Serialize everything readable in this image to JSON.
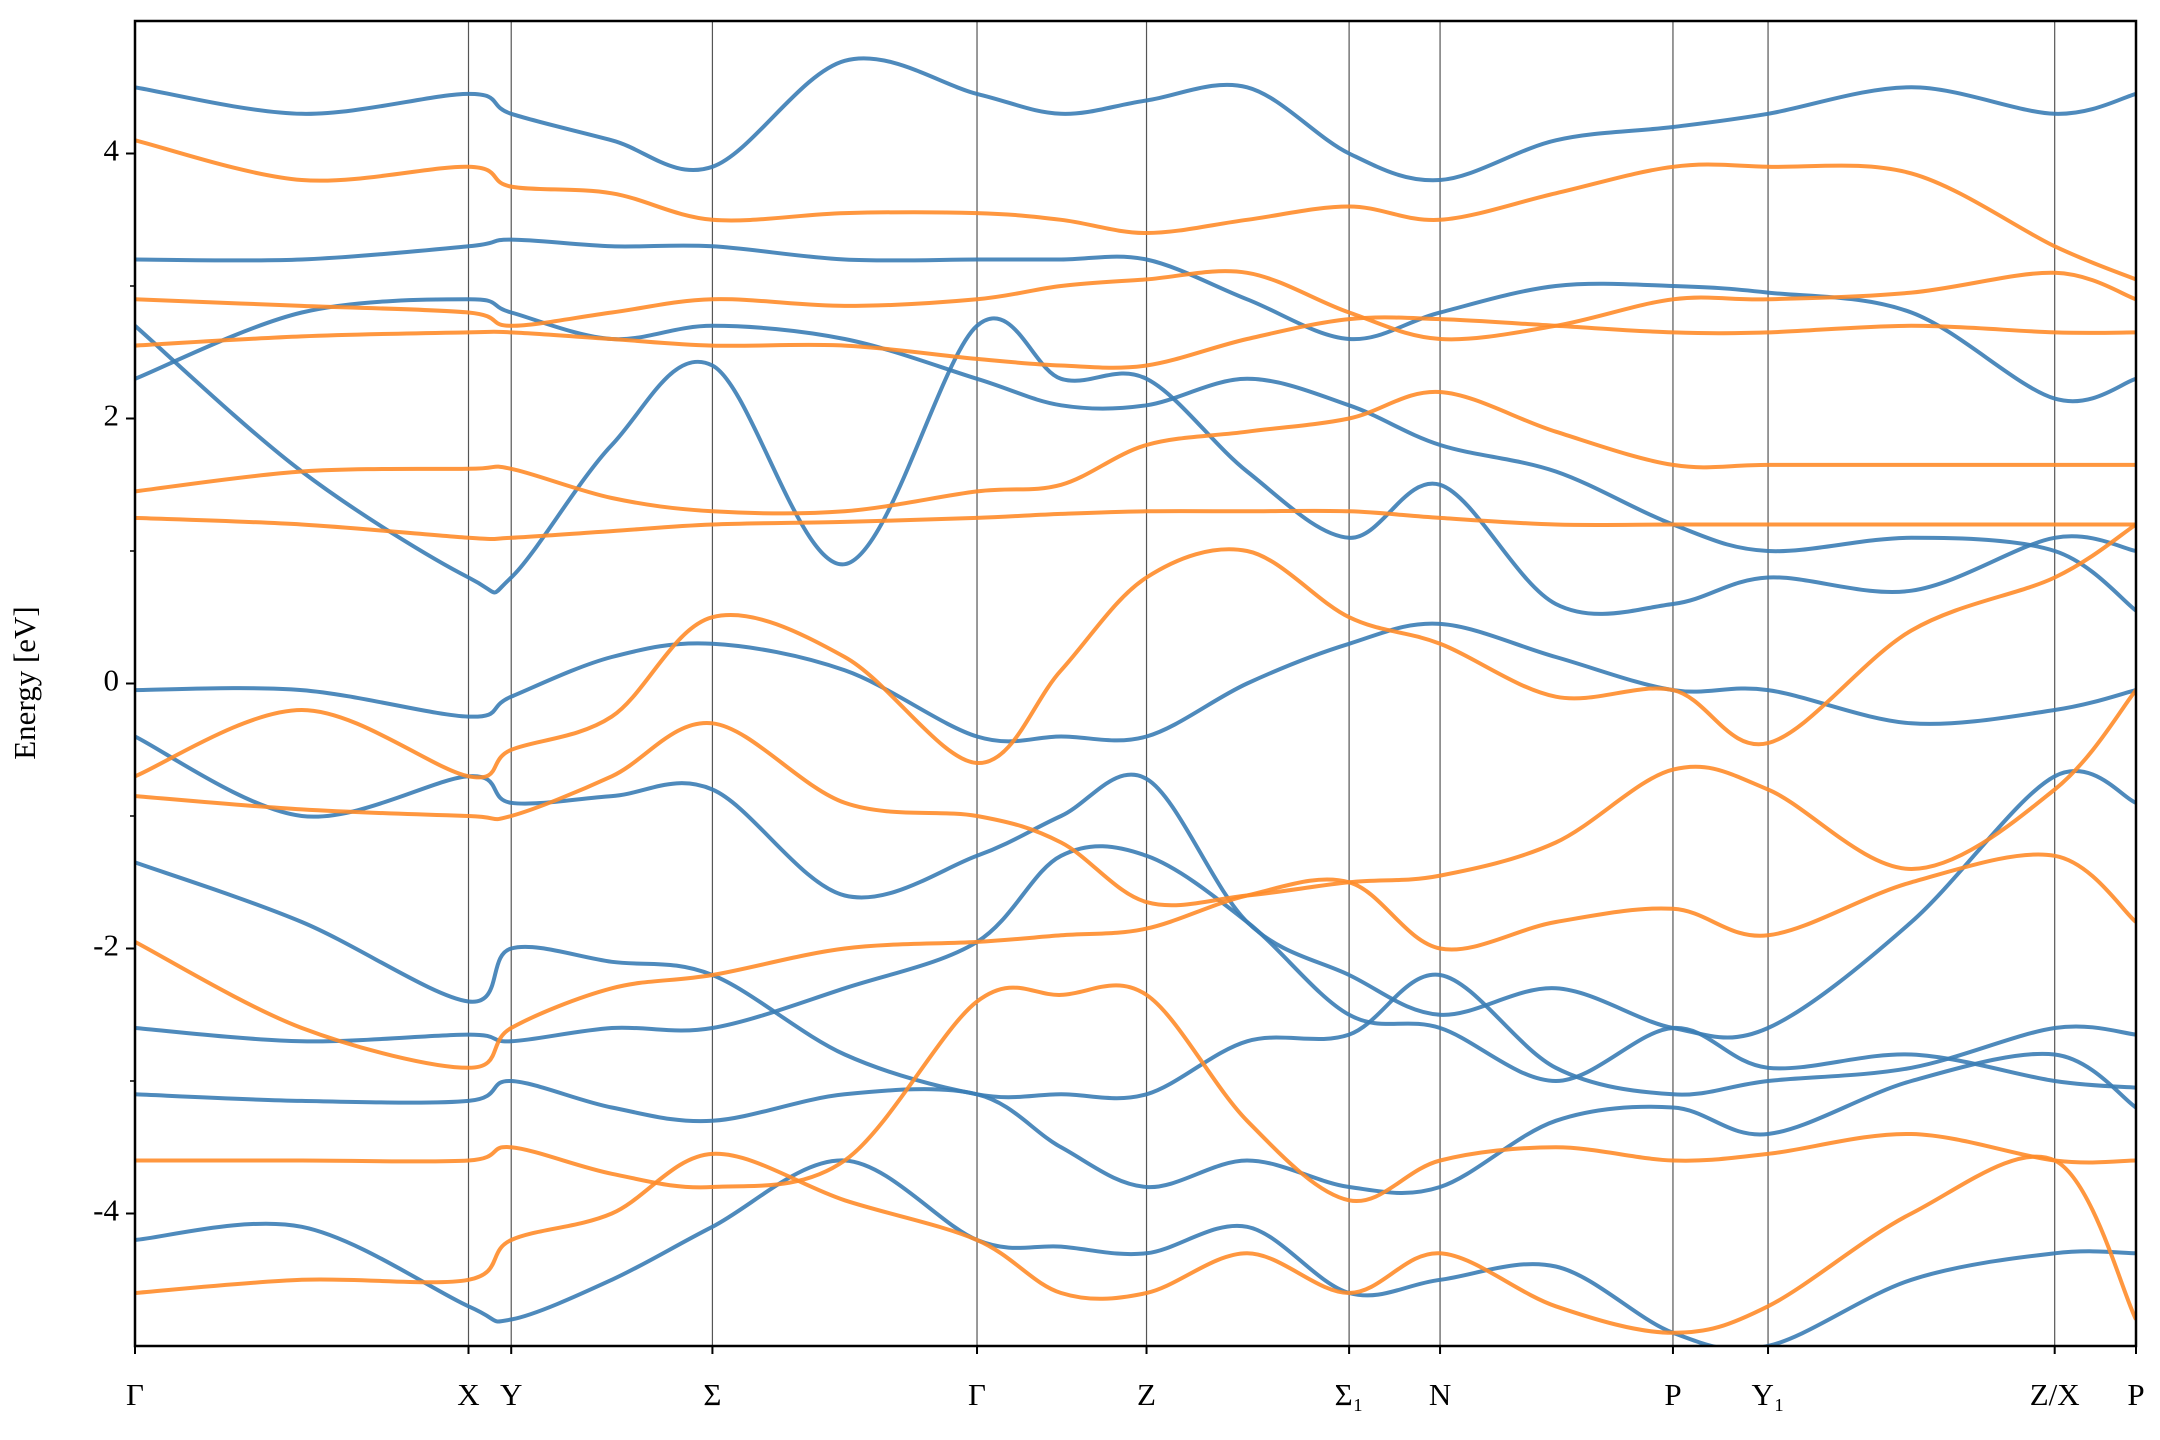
{
  "chart_data": {
    "type": "line",
    "ylabel": "Energy [eV]",
    "x": [
      0,
      0.121,
      0.242,
      0.273,
      0.346,
      0.419,
      0.515,
      0.611,
      0.672,
      0.734,
      0.807,
      0.881,
      0.947,
      1.031,
      1.116,
      1.185,
      1.289,
      1.393,
      1.452
    ],
    "xlim": [
      0,
      1.452
    ],
    "xticks": [
      {
        "value": 0,
        "label": "Γ"
      },
      {
        "value": 0.242,
        "label": "X"
      },
      {
        "value": 0.273,
        "label": "Y"
      },
      {
        "value": 0.419,
        "label": "Σ"
      },
      {
        "value": 0.611,
        "label": "Γ"
      },
      {
        "value": 0.734,
        "label": "Z"
      },
      {
        "value": 0.881,
        "label": "Σ₁"
      },
      {
        "value": 0.947,
        "label": "N"
      },
      {
        "value": 1.116,
        "label": "P"
      },
      {
        "value": 1.185,
        "label": "Y₁"
      },
      {
        "value": 1.393,
        "label": "Z/X"
      },
      {
        "value": 1.452,
        "label": "P"
      }
    ],
    "ylim": [
      -5,
      5
    ],
    "yticks": [
      -4,
      -2,
      0,
      2,
      4
    ],
    "yminorticks": [
      -3,
      -1,
      1,
      3
    ],
    "xgrid": true,
    "series": [
      {
        "color": "#3b7db5",
        "values": [
          -0.05,
          -0.05,
          -0.25,
          -0.1,
          0.2,
          0.3,
          0.1,
          -0.4,
          -0.4,
          -0.4,
          0.0,
          0.3,
          0.45,
          0.2,
          -0.05,
          -0.05,
          -0.3,
          -0.2,
          -0.05
        ]
      },
      {
        "color": "#3b7db5",
        "values": [
          -0.4,
          -1.0,
          -0.7,
          -0.9,
          -0.85,
          -0.8,
          -1.6,
          -1.3,
          -1.0,
          -0.72,
          -1.8,
          -2.2,
          -2.5,
          -2.3,
          -2.6,
          -2.6,
          -1.8,
          -0.7,
          -0.9
        ]
      },
      {
        "color": "#3b7db5",
        "values": [
          2.7,
          1.6,
          0.8,
          0.8,
          1.8,
          2.4,
          0.9,
          2.7,
          2.3,
          2.3,
          1.6,
          1.1,
          1.5,
          0.6,
          0.6,
          0.8,
          0.7,
          1.1,
          1.0
        ]
      },
      {
        "color": "#3b7db5",
        "values": [
          3.2,
          3.2,
          3.3,
          3.35,
          3.3,
          3.3,
          3.2,
          3.2,
          3.2,
          3.2,
          2.9,
          2.6,
          2.8,
          3.0,
          3.0,
          2.95,
          2.8,
          2.15,
          2.3
        ]
      },
      {
        "color": "#3b7db5",
        "values": [
          4.5,
          4.3,
          4.45,
          4.3,
          4.1,
          3.9,
          4.7,
          4.45,
          4.3,
          4.4,
          4.5,
          4.0,
          3.8,
          4.1,
          4.2,
          4.3,
          4.5,
          4.3,
          4.45
        ]
      },
      {
        "color": "#3b7db5",
        "values": [
          -1.35,
          -1.8,
          -2.4,
          -2.0,
          -2.1,
          -2.2,
          -2.8,
          -3.1,
          -3.1,
          -3.1,
          -2.7,
          -2.65,
          -2.2,
          -2.9,
          -3.1,
          -3.0,
          -2.9,
          -2.6,
          -2.65
        ]
      },
      {
        "color": "#3b7db5",
        "values": [
          -3.1,
          -3.15,
          -3.15,
          -3.0,
          -3.2,
          -3.3,
          -3.1,
          -3.1,
          -3.5,
          -3.8,
          -3.6,
          -3.8,
          -3.8,
          -3.3,
          -3.2,
          -3.4,
          -3.0,
          -2.8,
          -3.2
        ]
      },
      {
        "color": "#3b7db5",
        "values": [
          -4.2,
          -4.1,
          -4.7,
          -4.8,
          -4.5,
          -4.1,
          -3.6,
          -4.2,
          -4.25,
          -4.3,
          -4.1,
          -4.6,
          -4.5,
          -4.4,
          -4.9,
          -5.0,
          -4.5,
          -4.3,
          -4.3
        ]
      },
      {
        "color": "#3b7db5",
        "values": [
          2.3,
          2.8,
          2.9,
          2.8,
          2.6,
          2.7,
          2.6,
          2.3,
          2.1,
          2.1,
          2.3,
          2.1,
          1.8,
          1.6,
          1.2,
          1.0,
          1.1,
          1.0,
          0.55
        ]
      },
      {
        "color": "#3b7db5",
        "values": [
          -2.6,
          -2.7,
          -2.65,
          -2.7,
          -2.6,
          -2.6,
          -2.3,
          -1.95,
          -1.3,
          -1.3,
          -1.8,
          -2.5,
          -2.6,
          -3.0,
          -2.6,
          -2.9,
          -2.8,
          -3.0,
          -3.05
        ]
      },
      {
        "color": "#ff8c2a",
        "values": [
          1.45,
          1.6,
          1.62,
          1.62,
          1.4,
          1.3,
          1.3,
          1.45,
          1.5,
          1.8,
          1.9,
          2.0,
          2.2,
          1.9,
          1.65,
          1.65,
          1.65,
          1.65,
          1.65
        ]
      },
      {
        "color": "#ff8c2a",
        "values": [
          1.25,
          1.2,
          1.1,
          1.1,
          1.15,
          1.2,
          1.22,
          1.25,
          1.28,
          1.3,
          1.3,
          1.3,
          1.25,
          1.2,
          1.2,
          1.2,
          1.2,
          1.2,
          1.2
        ]
      },
      {
        "color": "#ff8c2a",
        "values": [
          -0.7,
          -0.2,
          -0.7,
          -0.5,
          -0.25,
          0.5,
          0.2,
          -0.6,
          0.1,
          0.8,
          1.0,
          0.5,
          0.3,
          -0.1,
          -0.05,
          -0.45,
          0.4,
          0.8,
          1.2
        ]
      },
      {
        "color": "#ff8c2a",
        "values": [
          2.55,
          2.62,
          2.65,
          2.65,
          2.6,
          2.55,
          2.55,
          2.45,
          2.4,
          2.4,
          2.6,
          2.75,
          2.75,
          2.7,
          2.65,
          2.65,
          2.7,
          2.65,
          2.65
        ]
      },
      {
        "color": "#ff8c2a",
        "values": [
          2.9,
          2.85,
          2.8,
          2.7,
          2.8,
          2.9,
          2.85,
          2.9,
          3.0,
          3.05,
          3.1,
          2.8,
          2.6,
          2.7,
          2.9,
          2.9,
          2.95,
          3.1,
          2.9
        ]
      },
      {
        "color": "#ff8c2a",
        "values": [
          -1.95,
          -2.6,
          -2.9,
          -2.6,
          -2.3,
          -2.2,
          -2.0,
          -1.95,
          -1.9,
          -1.85,
          -1.6,
          -1.5,
          -2.0,
          -1.8,
          -1.7,
          -1.9,
          -1.5,
          -1.3,
          -1.8
        ]
      },
      {
        "color": "#ff8c2a",
        "values": [
          -3.6,
          -3.6,
          -3.6,
          -3.5,
          -3.7,
          -3.8,
          -3.6,
          -2.4,
          -2.35,
          -2.35,
          -3.3,
          -3.9,
          -3.6,
          -3.5,
          -3.6,
          -3.55,
          -3.4,
          -3.6,
          -3.6
        ]
      },
      {
        "color": "#ff8c2a",
        "values": [
          -4.6,
          -4.5,
          -4.5,
          -4.2,
          -4.0,
          -3.55,
          -3.9,
          -4.2,
          -4.6,
          -4.6,
          -4.3,
          -4.6,
          -4.3,
          -4.7,
          -4.9,
          -4.7,
          -4.0,
          -3.6,
          -4.8
        ]
      },
      {
        "color": "#ff8c2a",
        "values": [
          4.1,
          3.8,
          3.9,
          3.75,
          3.7,
          3.5,
          3.55,
          3.55,
          3.5,
          3.4,
          3.5,
          3.6,
          3.5,
          3.7,
          3.9,
          3.9,
          3.85,
          3.3,
          3.05
        ]
      },
      {
        "color": "#ff8c2a",
        "values": [
          -0.85,
          -0.95,
          -1.0,
          -1.0,
          -0.7,
          -0.3,
          -0.9,
          -1.0,
          -1.2,
          -1.65,
          -1.6,
          -1.5,
          -1.45,
          -1.2,
          -0.65,
          -0.8,
          -1.4,
          -0.8,
          -0.05
        ]
      }
    ]
  }
}
